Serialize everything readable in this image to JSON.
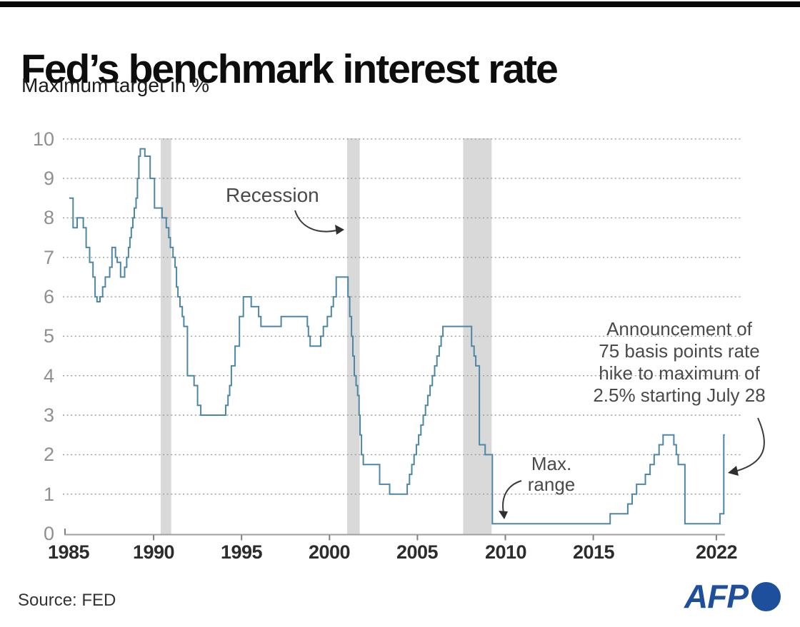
{
  "header": {
    "title": "Fed’s benchmark interest rate",
    "subtitle": "Maximum target in %"
  },
  "footer": {
    "source": "Source: FED",
    "logo_text": "AFP"
  },
  "colors": {
    "line": "#4d87a5",
    "recession_band": "#d9d9d9",
    "grid": "#9b9b9b",
    "axis": "#a0a0a0",
    "annotation_text": "#4a4a4a",
    "arrow": "#2f2f2f",
    "afp_blue": "#1e4f9c"
  },
  "chart_data": {
    "type": "line",
    "step": true,
    "title": "Fed’s benchmark interest rate",
    "ylabel": "Maximum target in %",
    "xlabel": "",
    "ylim": [
      0,
      10
    ],
    "xlim": [
      1984.8,
      2023.4
    ],
    "grid": "horizontal-dotted",
    "legend_position": "none",
    "yticks": [
      0,
      1,
      2,
      3,
      4,
      5,
      6,
      7,
      8,
      9,
      10
    ],
    "xticks": [
      1985,
      1990,
      1995,
      2000,
      2005,
      2010,
      2015,
      2022
    ],
    "end_year": 2022.48,
    "series": [
      {
        "name": "Fed benchmark interest rate (maximum target, %)",
        "points": [
          [
            1985.2,
            8.5
          ],
          [
            1985.42,
            7.75
          ],
          [
            1985.65,
            8.0
          ],
          [
            1986.0,
            7.75
          ],
          [
            1986.16,
            7.25
          ],
          [
            1986.36,
            6.875
          ],
          [
            1986.55,
            6.5
          ],
          [
            1986.67,
            6.0
          ],
          [
            1986.78,
            5.875
          ],
          [
            1986.95,
            6.0
          ],
          [
            1987.1,
            6.25
          ],
          [
            1987.25,
            6.5
          ],
          [
            1987.5,
            6.75
          ],
          [
            1987.63,
            7.25
          ],
          [
            1987.83,
            7.0
          ],
          [
            1987.93,
            6.875
          ],
          [
            1988.12,
            6.5
          ],
          [
            1988.35,
            6.75
          ],
          [
            1988.47,
            7.0
          ],
          [
            1988.57,
            7.25
          ],
          [
            1988.65,
            7.5
          ],
          [
            1988.73,
            7.75
          ],
          [
            1988.82,
            8.0
          ],
          [
            1988.9,
            8.25
          ],
          [
            1989.0,
            8.5
          ],
          [
            1989.08,
            9.0
          ],
          [
            1989.16,
            9.5625
          ],
          [
            1989.24,
            9.75
          ],
          [
            1989.5,
            9.5625
          ],
          [
            1989.8,
            9.0
          ],
          [
            1990.05,
            8.25
          ],
          [
            1990.48,
            8.0
          ],
          [
            1990.72,
            7.75
          ],
          [
            1990.86,
            7.5
          ],
          [
            1990.95,
            7.25
          ],
          [
            1991.1,
            7.0
          ],
          [
            1991.22,
            6.75
          ],
          [
            1991.3,
            6.25
          ],
          [
            1991.38,
            6.0
          ],
          [
            1991.5,
            5.75
          ],
          [
            1991.63,
            5.5
          ],
          [
            1991.72,
            5.25
          ],
          [
            1991.92,
            4.0
          ],
          [
            1992.3,
            3.75
          ],
          [
            1992.5,
            3.25
          ],
          [
            1992.68,
            3.0
          ],
          [
            1994.1,
            3.25
          ],
          [
            1994.23,
            3.5
          ],
          [
            1994.32,
            3.75
          ],
          [
            1994.42,
            4.25
          ],
          [
            1994.63,
            4.75
          ],
          [
            1994.88,
            5.5
          ],
          [
            1995.1,
            6.0
          ],
          [
            1995.55,
            5.75
          ],
          [
            1995.97,
            5.5
          ],
          [
            1996.1,
            5.25
          ],
          [
            1997.25,
            5.5
          ],
          [
            1998.74,
            5.25
          ],
          [
            1998.8,
            5.0
          ],
          [
            1998.9,
            4.75
          ],
          [
            1999.5,
            5.0
          ],
          [
            1999.65,
            5.25
          ],
          [
            1999.88,
            5.5
          ],
          [
            2000.1,
            5.75
          ],
          [
            2000.22,
            6.0
          ],
          [
            2000.38,
            6.5
          ],
          [
            2001.05,
            6.0
          ],
          [
            2001.15,
            5.5
          ],
          [
            2001.25,
            5.0
          ],
          [
            2001.33,
            4.5
          ],
          [
            2001.41,
            4.0
          ],
          [
            2001.51,
            3.75
          ],
          [
            2001.6,
            3.5
          ],
          [
            2001.68,
            3.0
          ],
          [
            2001.74,
            2.5
          ],
          [
            2001.82,
            2.0
          ],
          [
            2001.92,
            1.75
          ],
          [
            2002.85,
            1.25
          ],
          [
            2003.42,
            1.0
          ],
          [
            2004.42,
            1.25
          ],
          [
            2004.55,
            1.5
          ],
          [
            2004.68,
            1.75
          ],
          [
            2004.81,
            2.0
          ],
          [
            2004.94,
            2.25
          ],
          [
            2005.07,
            2.5
          ],
          [
            2005.2,
            2.75
          ],
          [
            2005.33,
            3.0
          ],
          [
            2005.46,
            3.25
          ],
          [
            2005.59,
            3.5
          ],
          [
            2005.72,
            3.75
          ],
          [
            2005.85,
            4.0
          ],
          [
            2005.98,
            4.25
          ],
          [
            2006.11,
            4.5
          ],
          [
            2006.24,
            4.75
          ],
          [
            2006.35,
            5.0
          ],
          [
            2006.45,
            5.25
          ],
          [
            2008.08,
            4.75
          ],
          [
            2008.22,
            4.5
          ],
          [
            2008.32,
            4.25
          ],
          [
            2008.52,
            2.25
          ],
          [
            2008.85,
            2.0
          ],
          [
            2009.26,
            0.25
          ],
          [
            2015.96,
            0.5
          ],
          [
            2016.96,
            0.75
          ],
          [
            2017.21,
            1.0
          ],
          [
            2017.46,
            1.25
          ],
          [
            2017.96,
            1.5
          ],
          [
            2018.23,
            1.75
          ],
          [
            2018.46,
            2.0
          ],
          [
            2018.74,
            2.25
          ],
          [
            2018.97,
            2.5
          ],
          [
            2019.58,
            2.25
          ],
          [
            2019.72,
            2.0
          ],
          [
            2019.83,
            1.75
          ],
          [
            2020.21,
            0.25
          ],
          [
            2022.2,
            0.5
          ],
          [
            2022.42,
            2.5
          ]
        ]
      }
    ],
    "recessions": [
      [
        1990.4,
        1991.0
      ],
      [
        2001.0,
        2001.72
      ],
      [
        2007.6,
        2009.22
      ]
    ],
    "annotations": {
      "recession": {
        "text": "Recession"
      },
      "max_range": {
        "lines": [
          "Max.",
          "range"
        ]
      },
      "announcement": {
        "lines": [
          "Announcement of",
          "75 basis points rate",
          "hike to maximum of",
          "2.5% starting July 28"
        ]
      }
    }
  }
}
